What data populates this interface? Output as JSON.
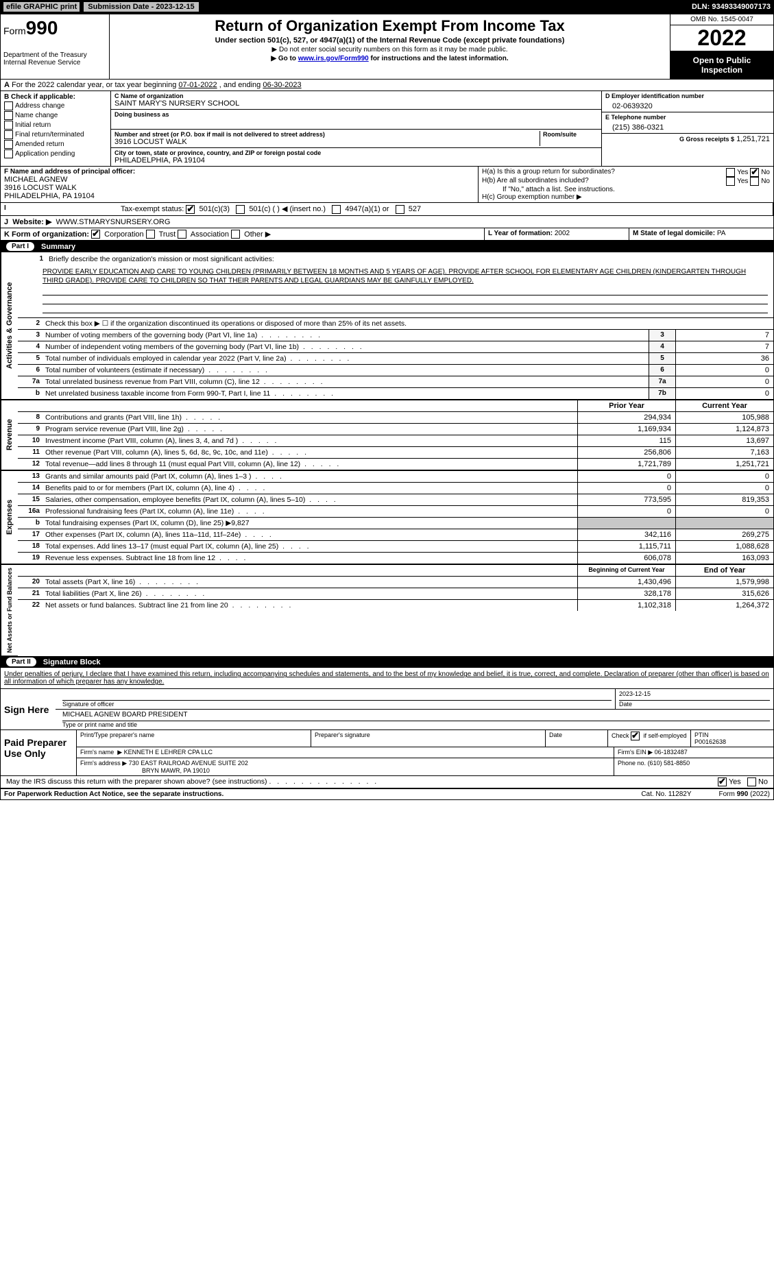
{
  "topbar": {
    "efile": "efile GRAPHIC print",
    "submission_label": "Submission Date - 2023-12-15",
    "dln": "DLN: 93493349007173"
  },
  "header": {
    "form_label": "Form",
    "form_num": "990",
    "title": "Return of Organization Exempt From Income Tax",
    "subtitle": "Under section 501(c), 527, or 4947(a)(1) of the Internal Revenue Code (except private foundations)",
    "note1": "▶ Do not enter social security numbers on this form as it may be made public.",
    "note2_pre": "▶ Go to ",
    "note2_link": "www.irs.gov/Form990",
    "note2_post": " for instructions and the latest information.",
    "dept": "Department of the Treasury",
    "irs": "Internal Revenue Service",
    "omb": "OMB No. 1545-0047",
    "year": "2022",
    "open_public": "Open to Public Inspection"
  },
  "A": {
    "text_pre": "For the 2022 calendar year, or tax year beginning ",
    "begin": "07-01-2022",
    "mid": " , and ending ",
    "end": "06-30-2023"
  },
  "B": {
    "label": "B Check if applicable:",
    "items": [
      "Address change",
      "Name change",
      "Initial return",
      "Final return/terminated",
      "Amended return",
      "Application pending"
    ]
  },
  "C": {
    "name_label": "C Name of organization",
    "name": "SAINT MARY'S NURSERY SCHOOL",
    "dba_label": "Doing business as",
    "addr_label": "Number and street (or P.O. box if mail is not delivered to street address)",
    "room_label": "Room/suite",
    "addr": "3916 LOCUST WALK",
    "city_label": "City or town, state or province, country, and ZIP or foreign postal code",
    "city": "PHILADELPHIA, PA  19104"
  },
  "D": {
    "label": "D Employer identification number",
    "value": "02-0639320"
  },
  "E": {
    "label": "E Telephone number",
    "value": "(215) 386-0321"
  },
  "G": {
    "label": "G Gross receipts $",
    "value": "1,251,721"
  },
  "F": {
    "label": "F  Name and address of principal officer:",
    "name": "MICHAEL AGNEW",
    "addr1": "3916 LOCUST WALK",
    "addr2": "PHILADELPHIA, PA  19104"
  },
  "H": {
    "a": "H(a)  Is this a group return for subordinates?",
    "b": "H(b)  Are all subordinates included?",
    "b_note": "If \"No,\" attach a list. See instructions.",
    "c": "H(c)  Group exemption number ▶",
    "yes": "Yes",
    "no": "No"
  },
  "I": {
    "label": "Tax-exempt status:",
    "opt1": "501(c)(3)",
    "opt2": "501(c) (   ) ◀ (insert no.)",
    "opt3": "4947(a)(1) or",
    "opt4": "527"
  },
  "J": {
    "label": "Website: ▶",
    "value": "WWW.STMARYSNURSERY.ORG"
  },
  "K": {
    "label": "K Form of organization:",
    "opts": [
      "Corporation",
      "Trust",
      "Association",
      "Other ▶"
    ]
  },
  "L": {
    "label": "L Year of formation:",
    "value": "2002"
  },
  "M": {
    "label": "M State of legal domicile:",
    "value": "PA"
  },
  "part1": {
    "title": "Summary",
    "partnum": "Part I",
    "line1_label": "Briefly describe the organization's mission or most significant activities:",
    "mission": "PROVIDE EARLY EDUCATION AND CARE TO YOUNG CHILDREN (PRIMARILY BETWEEN 18 MONTHS AND 5 YEARS OF AGE). PROVIDE AFTER SCHOOL FOR ELEMENTARY AGE CHILDREN (KINDERGARTEN THROUGH THIRD GRADE). PROVIDE CARE TO CHILDREN SO THAT THEIR PARENTS AND LEGAL GUARDIANS MAY BE GAINFULLY EMPLOYED.",
    "line2": "Check this box ▶ ☐ if the organization discontinued its operations or disposed of more than 25% of its net assets.",
    "sidelabel_ag": "Activities & Governance",
    "sidelabel_rev": "Revenue",
    "sidelabel_exp": "Expenses",
    "sidelabel_na": "Net Assets or Fund Balances",
    "lines_ag": [
      {
        "n": "3",
        "t": "Number of voting members of the governing body (Part VI, line 1a)",
        "box": "3",
        "v": "7"
      },
      {
        "n": "4",
        "t": "Number of independent voting members of the governing body (Part VI, line 1b)",
        "box": "4",
        "v": "7"
      },
      {
        "n": "5",
        "t": "Total number of individuals employed in calendar year 2022 (Part V, line 2a)",
        "box": "5",
        "v": "36"
      },
      {
        "n": "6",
        "t": "Total number of volunteers (estimate if necessary)",
        "box": "6",
        "v": "0"
      },
      {
        "n": "7a",
        "t": "Total unrelated business revenue from Part VIII, column (C), line 12",
        "box": "7a",
        "v": "0"
      },
      {
        "n": "b",
        "t": "Net unrelated business taxable income from Form 990-T, Part I, line 11",
        "box": "7b",
        "v": "0"
      }
    ],
    "col_prior": "Prior Year",
    "col_current": "Current Year",
    "lines_rev": [
      {
        "n": "8",
        "t": "Contributions and grants (Part VIII, line 1h)",
        "p": "294,934",
        "c": "105,988"
      },
      {
        "n": "9",
        "t": "Program service revenue (Part VIII, line 2g)",
        "p": "1,169,934",
        "c": "1,124,873"
      },
      {
        "n": "10",
        "t": "Investment income (Part VIII, column (A), lines 3, 4, and 7d )",
        "p": "115",
        "c": "13,697"
      },
      {
        "n": "11",
        "t": "Other revenue (Part VIII, column (A), lines 5, 6d, 8c, 9c, 10c, and 11e)",
        "p": "256,806",
        "c": "7,163"
      },
      {
        "n": "12",
        "t": "Total revenue—add lines 8 through 11 (must equal Part VIII, column (A), line 12)",
        "p": "1,721,789",
        "c": "1,251,721"
      }
    ],
    "lines_exp": [
      {
        "n": "13",
        "t": "Grants and similar amounts paid (Part IX, column (A), lines 1–3 )",
        "p": "0",
        "c": "0"
      },
      {
        "n": "14",
        "t": "Benefits paid to or for members (Part IX, column (A), line 4)",
        "p": "0",
        "c": "0"
      },
      {
        "n": "15",
        "t": "Salaries, other compensation, employee benefits (Part IX, column (A), lines 5–10)",
        "p": "773,595",
        "c": "819,353"
      },
      {
        "n": "16a",
        "t": "Professional fundraising fees (Part IX, column (A), line 11e)",
        "p": "0",
        "c": "0"
      },
      {
        "n": "b",
        "t": "Total fundraising expenses (Part IX, column (D), line 25) ▶9,827",
        "p": "",
        "c": "",
        "shaded": true
      },
      {
        "n": "17",
        "t": "Other expenses (Part IX, column (A), lines 11a–11d, 11f–24e)",
        "p": "342,116",
        "c": "269,275"
      },
      {
        "n": "18",
        "t": "Total expenses. Add lines 13–17 (must equal Part IX, column (A), line 25)",
        "p": "1,115,711",
        "c": "1,088,628"
      },
      {
        "n": "19",
        "t": "Revenue less expenses. Subtract line 18 from line 12",
        "p": "606,078",
        "c": "163,093"
      }
    ],
    "col_begin": "Beginning of Current Year",
    "col_end": "End of Year",
    "lines_na": [
      {
        "n": "20",
        "t": "Total assets (Part X, line 16)",
        "p": "1,430,496",
        "c": "1,579,998"
      },
      {
        "n": "21",
        "t": "Total liabilities (Part X, line 26)",
        "p": "328,178",
        "c": "315,626"
      },
      {
        "n": "22",
        "t": "Net assets or fund balances. Subtract line 21 from line 20",
        "p": "1,102,318",
        "c": "1,264,372"
      }
    ]
  },
  "part2": {
    "partnum": "Part II",
    "title": "Signature Block",
    "penalties": "Under penalties of perjury, I declare that I have examined this return, including accompanying schedules and statements, and to the best of my knowledge and belief, it is true, correct, and complete. Declaration of preparer (other than officer) is based on all information of which preparer has any knowledge.",
    "sign_here": "Sign Here",
    "sig_officer": "Signature of officer",
    "sig_date": "2023-12-15",
    "date_label": "Date",
    "officer_name": "MICHAEL AGNEW  BOARD PRESIDENT",
    "type_name": "Type or print name and title",
    "paid_prep": "Paid Preparer Use Only",
    "prep_name_label": "Print/Type preparer's name",
    "prep_sig_label": "Preparer's signature",
    "check_if": "Check",
    "if_self": "if self-employed",
    "ptin_label": "PTIN",
    "ptin": "P00162638",
    "firm_name_label": "Firm's name",
    "firm_name": "KENNETH E LEHRER CPA LLC",
    "firm_ein_label": "Firm's EIN ▶",
    "firm_ein": "06-1832487",
    "firm_addr_label": "Firm's address ▶",
    "firm_addr1": "730 EAST RAILROAD AVENUE SUITE 202",
    "firm_addr2": "BRYN MAWR, PA  19010",
    "phone_label": "Phone no.",
    "phone": "(610) 581-8850",
    "may_discuss": "May the IRS discuss this return with the preparer shown above? (see instructions)",
    "yes": "Yes",
    "no": "No"
  },
  "footer": {
    "paperwork": "For Paperwork Reduction Act Notice, see the separate instructions.",
    "cat": "Cat. No. 11282Y",
    "form": "Form 990 (2022)"
  }
}
